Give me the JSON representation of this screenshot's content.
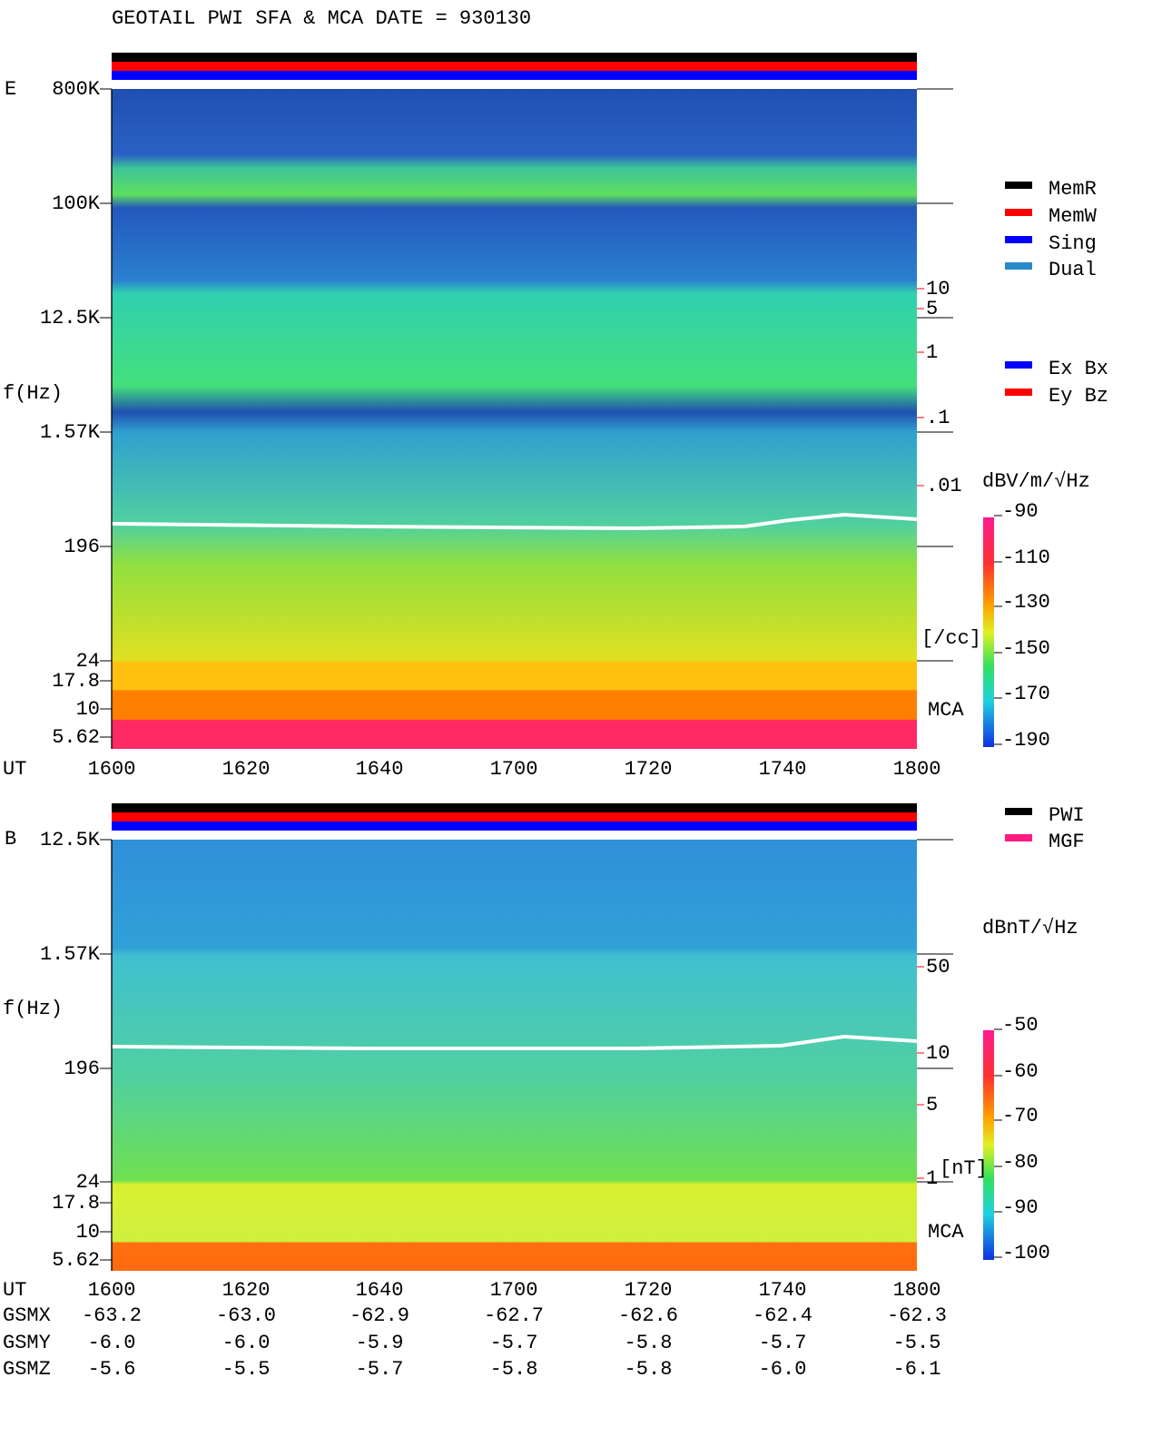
{
  "title": "GEOTAIL   PWI SFA & MCA   DATE = 930130",
  "panel_e": {
    "label": "E",
    "y_axis_label": "f(Hz)",
    "yticks": [
      "800K",
      "100K",
      "12.5K",
      "1.57K",
      "196",
      "24",
      "17.8",
      "10",
      "5.62"
    ],
    "x_axis_label": "UT",
    "xticks": [
      "1600",
      "1620",
      "1640",
      "1700",
      "1720",
      "1740",
      "1800"
    ],
    "density_ticks": [
      "10",
      "5",
      "1",
      ".1",
      ".01"
    ],
    "density_unit": "[/cc]",
    "mca": "MCA",
    "colorbar_unit": "dBV/m/√Hz",
    "colorbar_ticks": [
      -90,
      -110,
      -130,
      -150,
      -170,
      -190
    ]
  },
  "panel_b": {
    "label": "B",
    "y_axis_label": "f(Hz)",
    "yticks": [
      "12.5K",
      "1.57K",
      "196",
      "24",
      "17.8",
      "10",
      "5.62"
    ],
    "x_axis_label": "UT",
    "xticks": [
      "1600",
      "1620",
      "1640",
      "1700",
      "1720",
      "1740",
      "1800"
    ],
    "field_ticks": [
      "50",
      "10",
      "5",
      "1"
    ],
    "field_unit": "[nT]",
    "mca": "MCA",
    "colorbar_unit": "dBnT/√Hz",
    "colorbar_ticks": [
      -50,
      -60,
      -70,
      -80,
      -90,
      -100
    ]
  },
  "legend_mode": [
    "MemR",
    "MemW",
    "Sing",
    "Dual"
  ],
  "legend_channel": [
    "Ex Bx",
    "Ey Bz"
  ],
  "legend_source": [
    "PWI",
    "MGF"
  ],
  "orbit": [
    {
      "label": "GSMX",
      "values": [
        "-63.2",
        "-63.0",
        "-62.9",
        "-62.7",
        "-62.6",
        "-62.4",
        "-62.3"
      ]
    },
    {
      "label": "GSMY",
      "values": [
        "-6.0",
        "-6.0",
        "-5.9",
        "-5.7",
        "-5.8",
        "-5.7",
        "-5.5"
      ]
    },
    {
      "label": "GSMZ",
      "values": [
        "-5.6",
        "-5.5",
        "-5.7",
        "-5.8",
        "-5.8",
        "-6.0",
        "-6.1"
      ]
    }
  ]
}
